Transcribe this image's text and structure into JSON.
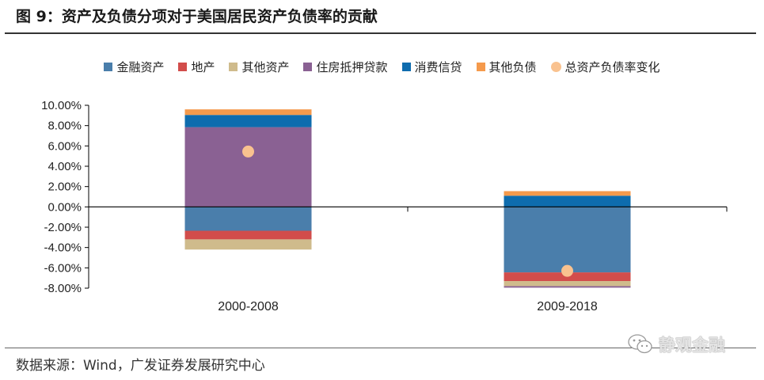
{
  "figure": {
    "title": "图 9：资产及负债分项对于美国居民资产负债率的贡献",
    "source": "数据来源：Wind，广发证券发展研究中心",
    "watermark": "静观金融",
    "watermark_icon": "wechat-icon"
  },
  "chart_data": {
    "type": "bar",
    "stacked": true,
    "categories": [
      "2000-2008",
      "2009-2018"
    ],
    "yaxis": {
      "min": -8,
      "max": 10,
      "step": 2,
      "ticks": [
        "10.00%",
        "8.00%",
        "6.00%",
        "4.00%",
        "2.00%",
        "0.00%",
        "-2.00%",
        "-4.00%",
        "-6.00%",
        "-8.00%"
      ]
    },
    "legend_position": "top",
    "series": [
      {
        "name": "金融资产",
        "color": "#4a7eab",
        "values": [
          -2.35,
          -6.45
        ]
      },
      {
        "name": "地产",
        "color": "#d24d4b",
        "values": [
          -0.85,
          -0.85
        ]
      },
      {
        "name": "其他资产",
        "color": "#cfbb8c",
        "values": [
          -1.0,
          -0.5
        ]
      },
      {
        "name": "住房抵押贷款",
        "color": "#8a6193",
        "values": [
          7.85,
          -0.15
        ]
      },
      {
        "name": "消费信贷",
        "color": "#0e6cae",
        "values": [
          1.2,
          1.1
        ]
      },
      {
        "name": "其他负债",
        "color": "#f59a4c",
        "values": [
          0.55,
          0.45
        ]
      }
    ],
    "markers": {
      "name": "总资产负债率变化",
      "color": "#f9c28f",
      "values": [
        5.45,
        -6.3
      ]
    }
  }
}
